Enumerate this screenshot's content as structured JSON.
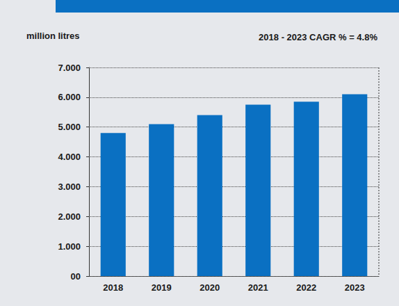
{
  "chart_data": {
    "type": "bar",
    "y_label": "million litres",
    "annotations": [
      "2018 - 2023 CAGR % = 4.8%"
    ],
    "categories": [
      "2018",
      "2019",
      "2020",
      "2021",
      "2022",
      "2023"
    ],
    "values": [
      4800,
      5100,
      5400,
      5750,
      5850,
      6100
    ],
    "color": "#0a70c2",
    "ylim": [
      0,
      7000
    ],
    "yticks": [
      {
        "value": 0,
        "label": "00"
      },
      {
        "value": 1000,
        "label": "1.000"
      },
      {
        "value": 2000,
        "label": "2.000"
      },
      {
        "value": 3000,
        "label": "3.000"
      },
      {
        "value": 4000,
        "label": "4.000"
      },
      {
        "value": 5000,
        "label": "5.000"
      },
      {
        "value": 6000,
        "label": "6.000"
      },
      {
        "value": 7000,
        "label": "7.000"
      }
    ],
    "grid": true
  }
}
